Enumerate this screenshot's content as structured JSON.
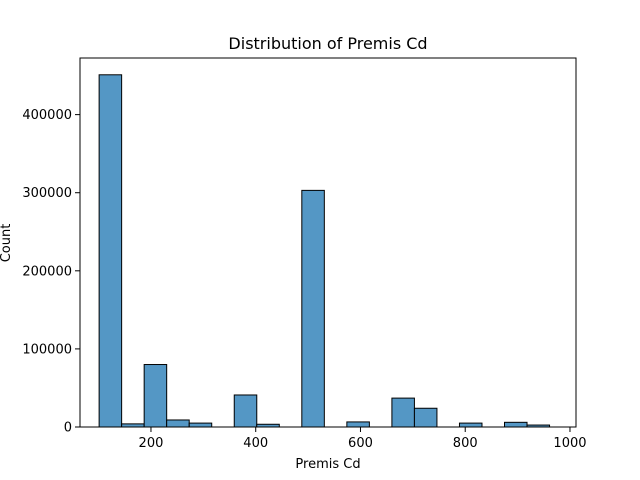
{
  "chart_data": {
    "type": "bar",
    "title": "Distribution of Premis Cd",
    "xlabel": "Premis Cd",
    "ylabel": "Count",
    "xlim": [
      64.5,
      1011.5
    ],
    "ylim": [
      0,
      472500
    ],
    "x_ticks": [
      200,
      400,
      600,
      800,
      1000
    ],
    "y_ticks": [
      0,
      100000,
      200000,
      300000,
      400000
    ],
    "bin_width": 43,
    "bins": [
      {
        "x0": 101,
        "x1": 144,
        "count": 451000
      },
      {
        "x0": 144,
        "x1": 187,
        "count": 4000
      },
      {
        "x0": 187,
        "x1": 230,
        "count": 80000
      },
      {
        "x0": 230,
        "x1": 273,
        "count": 9000
      },
      {
        "x0": 273,
        "x1": 316,
        "count": 5000
      },
      {
        "x0": 316,
        "x1": 359,
        "count": 0
      },
      {
        "x0": 359,
        "x1": 402,
        "count": 41000
      },
      {
        "x0": 402,
        "x1": 445,
        "count": 3500
      },
      {
        "x0": 445,
        "x1": 488,
        "count": 0
      },
      {
        "x0": 488,
        "x1": 531,
        "count": 303000
      },
      {
        "x0": 531,
        "x1": 574,
        "count": 0
      },
      {
        "x0": 574,
        "x1": 617,
        "count": 6500
      },
      {
        "x0": 617,
        "x1": 660,
        "count": 0
      },
      {
        "x0": 660,
        "x1": 703,
        "count": 37000
      },
      {
        "x0": 703,
        "x1": 746,
        "count": 24000
      },
      {
        "x0": 746,
        "x1": 789,
        "count": 0
      },
      {
        "x0": 789,
        "x1": 832,
        "count": 5000
      },
      {
        "x0": 832,
        "x1": 875,
        "count": 0
      },
      {
        "x0": 875,
        "x1": 918,
        "count": 6000
      },
      {
        "x0": 918,
        "x1": 961,
        "count": 2500
      }
    ],
    "bar_color": "#5497c5",
    "edge_color": "#000000",
    "grid": false
  }
}
